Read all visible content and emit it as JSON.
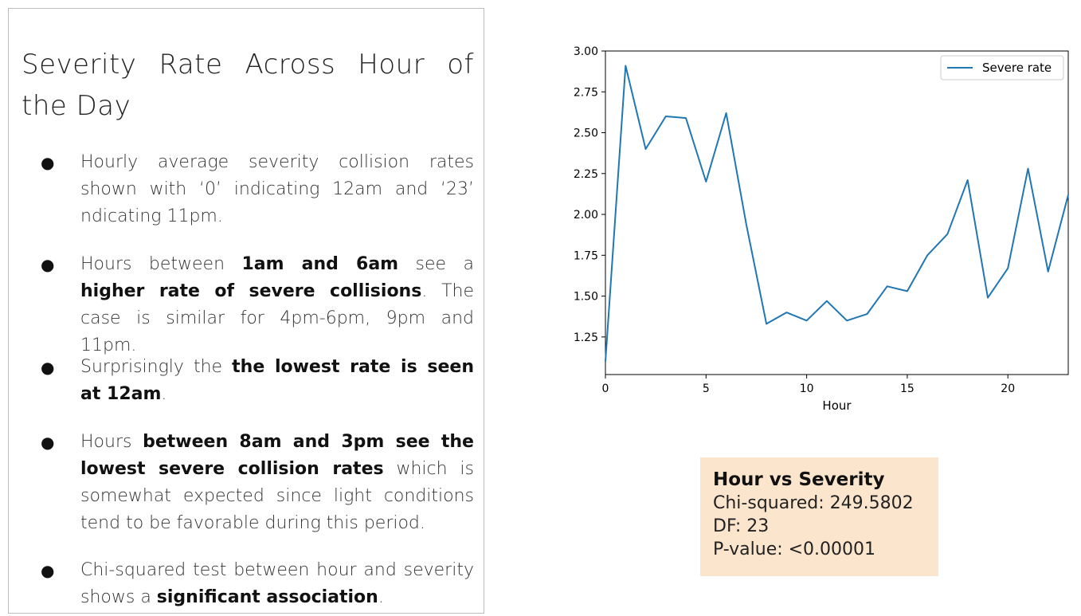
{
  "slide": {
    "title": "Severity Rate Across Hour of the Day",
    "bullets": [
      [
        {
          "t": "Hourly average severity collision rates shown with ‘0’ indicating 12am and ‘23’ ndicating 11pm."
        }
      ],
      [
        {
          "t": "Hours between "
        },
        {
          "t": "1am and 6am",
          "b": true
        },
        {
          "t": " see a "
        },
        {
          "t": "higher rate of severe collisions",
          "b": true
        },
        {
          "t": ". The case is similar for 4pm-6pm, 9pm and 11pm."
        }
      ],
      [
        {
          "t": "Surprisingly the "
        },
        {
          "t": "the lowest rate is seen at 12am",
          "b": true
        },
        {
          "t": "."
        }
      ],
      [
        {
          "t": "Hours "
        },
        {
          "t": "between 8am and 3pm see the lowest severe collision rates",
          "b": true
        },
        {
          "t": " which is somewhat expected since light conditions tend to be favorable during this period."
        }
      ],
      [
        {
          "t": "Chi-squared test between hour and severity shows a "
        },
        {
          "t": "significant association",
          "b": true
        },
        {
          "t": "."
        }
      ]
    ]
  },
  "chart_data": {
    "type": "line",
    "title": "",
    "xlabel": "Hour",
    "ylabel": "",
    "xlim": [
      0,
      23
    ],
    "ylim": [
      1.02,
      3.0
    ],
    "xticks": [
      0,
      5,
      10,
      15,
      20
    ],
    "yticks": [
      1.25,
      1.5,
      1.75,
      2.0,
      2.25,
      2.5,
      2.75,
      3.0
    ],
    "ytick_labels": [
      "1.25",
      "1.50",
      "1.75",
      "2.00",
      "2.25",
      "2.50",
      "2.75",
      "3.00"
    ],
    "grid": false,
    "legend_position": "top-right",
    "series": [
      {
        "name": "Severe rate",
        "color": "#1f77b4",
        "x": [
          0,
          1,
          2,
          3,
          4,
          5,
          6,
          7,
          8,
          9,
          10,
          11,
          12,
          13,
          14,
          15,
          16,
          17,
          18,
          19,
          20,
          21,
          22,
          23
        ],
        "y": [
          1.1,
          2.91,
          2.4,
          2.6,
          2.59,
          2.2,
          2.62,
          1.94,
          1.33,
          1.4,
          1.35,
          1.47,
          1.35,
          1.39,
          1.56,
          1.53,
          1.75,
          1.88,
          2.21,
          1.49,
          1.67,
          2.28,
          1.65,
          2.12
        ]
      }
    ]
  },
  "stats": {
    "title": "Hour vs Severity",
    "lines": [
      "Chi-squared: 249.5802",
      "DF: 23",
      "P-value: <0.00001"
    ]
  }
}
